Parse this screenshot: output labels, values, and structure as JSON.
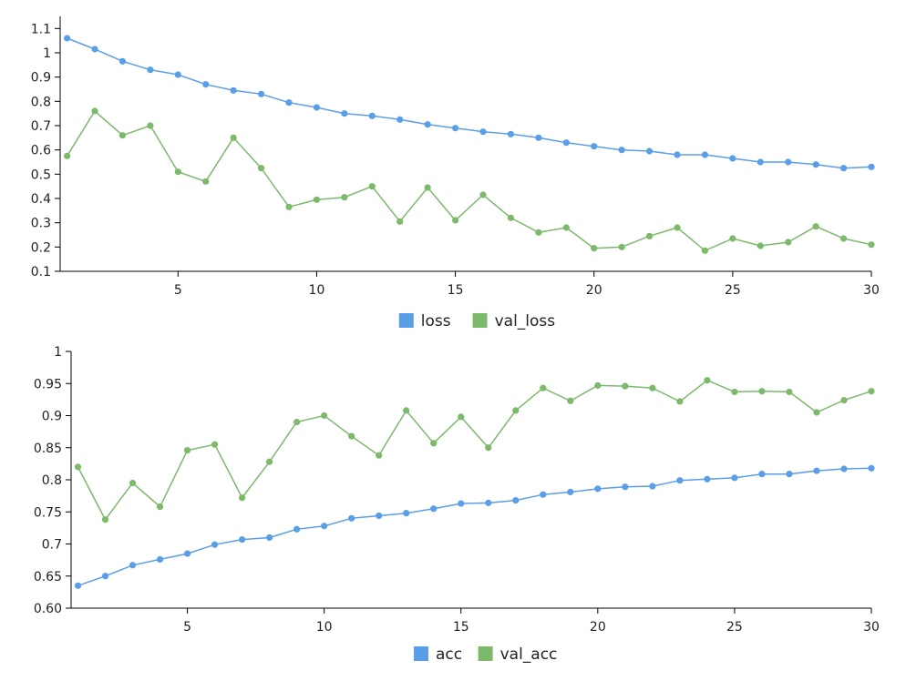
{
  "chart_data": [
    {
      "type": "line",
      "title": "",
      "xlabel": "",
      "ylabel": "",
      "xlim": [
        1,
        30
      ],
      "ylim": [
        0.1,
        1.15
      ],
      "x_ticks": [
        "5",
        "10",
        "15",
        "20",
        "25",
        "30"
      ],
      "y_ticks": [
        "0.1",
        "0.2",
        "0.3",
        "0.4",
        "0.5",
        "0.6",
        "0.7",
        "0.8",
        "0.9",
        "1",
        "1.1"
      ],
      "grid": false,
      "legend_position": "bottom-center",
      "x": [
        1,
        2,
        3,
        4,
        5,
        6,
        7,
        8,
        9,
        10,
        11,
        12,
        13,
        14,
        15,
        16,
        17,
        18,
        19,
        20,
        21,
        22,
        23,
        24,
        25,
        26,
        27,
        28,
        29,
        30
      ],
      "series": [
        {
          "name": "loss",
          "color": "#5b9ee8",
          "values": [
            1.06,
            1.015,
            0.965,
            0.93,
            0.91,
            0.87,
            0.845,
            0.83,
            0.795,
            0.775,
            0.75,
            0.74,
            0.725,
            0.705,
            0.69,
            0.675,
            0.665,
            0.65,
            0.63,
            0.615,
            0.6,
            0.595,
            0.58,
            0.58,
            0.565,
            0.55,
            0.55,
            0.54,
            0.525,
            0.53
          ]
        },
        {
          "name": "val_loss",
          "color": "#7cb96b",
          "values": [
            0.575,
            0.76,
            0.66,
            0.7,
            0.51,
            0.47,
            0.65,
            0.525,
            0.365,
            0.395,
            0.405,
            0.45,
            0.305,
            0.445,
            0.31,
            0.415,
            0.32,
            0.26,
            0.28,
            0.195,
            0.2,
            0.245,
            0.28,
            0.185,
            0.235,
            0.205,
            0.22,
            0.285,
            0.235,
            0.21
          ]
        }
      ]
    },
    {
      "type": "line",
      "title": "",
      "xlabel": "",
      "ylabel": "",
      "xlim": [
        1,
        30
      ],
      "ylim": [
        0.6,
        1.0
      ],
      "x_ticks": [
        "5",
        "10",
        "15",
        "20",
        "25",
        "30"
      ],
      "y_ticks": [
        "0.60",
        "0.65",
        "0.7",
        "0.75",
        "0.8",
        "0.85",
        "0.9",
        "0.95",
        "1"
      ],
      "grid": false,
      "legend_position": "bottom-center",
      "x": [
        1,
        2,
        3,
        4,
        5,
        6,
        7,
        8,
        9,
        10,
        11,
        12,
        13,
        14,
        15,
        16,
        17,
        18,
        19,
        20,
        21,
        22,
        23,
        24,
        25,
        26,
        27,
        28,
        29,
        30
      ],
      "series": [
        {
          "name": "acc",
          "color": "#5b9ee8",
          "values": [
            0.635,
            0.65,
            0.667,
            0.676,
            0.685,
            0.699,
            0.707,
            0.71,
            0.723,
            0.728,
            0.74,
            0.744,
            0.748,
            0.755,
            0.763,
            0.764,
            0.768,
            0.777,
            0.781,
            0.786,
            0.789,
            0.79,
            0.799,
            0.801,
            0.803,
            0.809,
            0.809,
            0.814,
            0.817,
            0.818
          ]
        },
        {
          "name": "val_acc",
          "color": "#7cb96b",
          "values": [
            0.82,
            0.738,
            0.795,
            0.758,
            0.846,
            0.855,
            0.772,
            0.828,
            0.89,
            0.9,
            0.868,
            0.838,
            0.908,
            0.857,
            0.898,
            0.85,
            0.908,
            0.943,
            0.923,
            0.947,
            0.946,
            0.943,
            0.922,
            0.955,
            0.937,
            0.938,
            0.937,
            0.905,
            0.924,
            0.938
          ]
        }
      ]
    }
  ]
}
